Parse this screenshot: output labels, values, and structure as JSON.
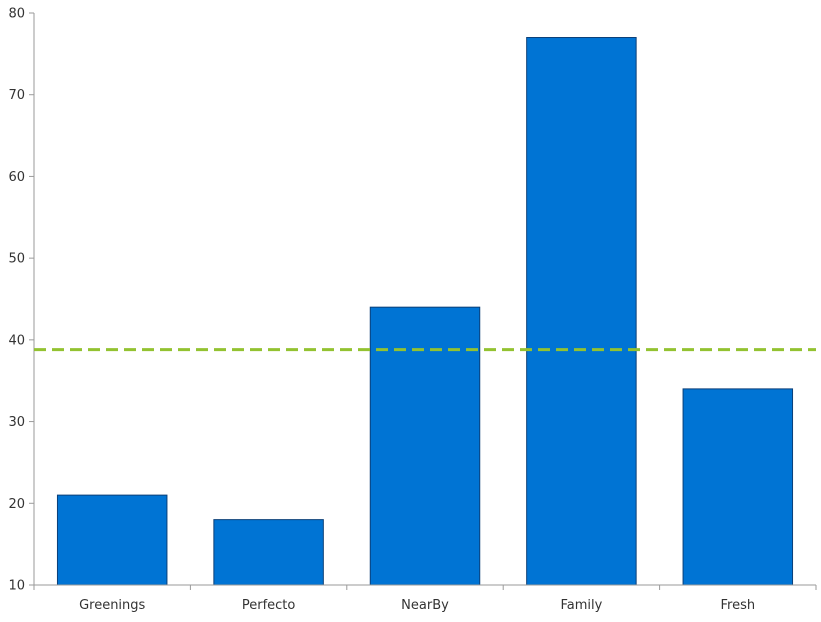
{
  "chart_data": {
    "type": "bar",
    "categories": [
      "Greenings",
      "Perfecto",
      "NearBy",
      "Family",
      "Fresh"
    ],
    "values": [
      21,
      18,
      44,
      77,
      34
    ],
    "ylim": [
      10,
      80
    ],
    "yticks": [
      10,
      20,
      30,
      40,
      50,
      60,
      70,
      80
    ],
    "reference_line": {
      "value": 38.8,
      "style": "dashed"
    },
    "grid": false,
    "colors": {
      "bar": "#0074D4",
      "reference_line": "#93C231"
    }
  }
}
